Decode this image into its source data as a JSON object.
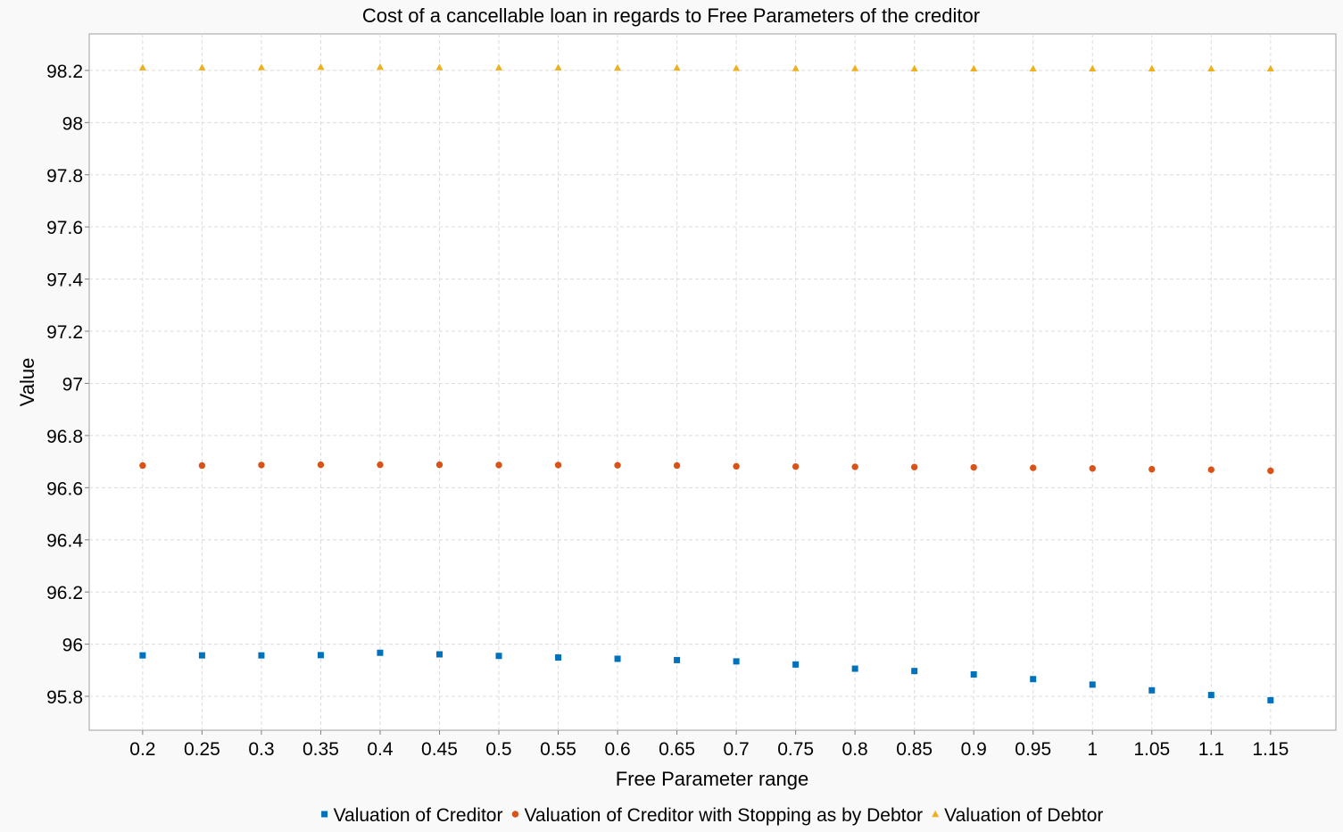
{
  "chart_data": {
    "type": "scatter",
    "title": "Cost of a cancellable loan in regards to Free Parameters of the creditor",
    "xlabel": "Free Parameter range",
    "ylabel": "Value",
    "x": [
      0.2,
      0.25,
      0.3,
      0.35,
      0.4,
      0.45,
      0.5,
      0.55,
      0.6,
      0.65,
      0.7,
      0.75,
      0.8,
      0.85,
      0.9,
      0.95,
      1,
      1.05,
      1.1,
      1.15
    ],
    "x_tick_labels": [
      "0.2",
      "0.25",
      "0.3",
      "0.35",
      "0.4",
      "0.45",
      "0.5",
      "0.55",
      "0.6",
      "0.65",
      "0.7",
      "0.75",
      "0.8",
      "0.85",
      "0.9",
      "0.95",
      "1",
      "1.05",
      "1.1",
      "1.15"
    ],
    "xlim": [
      0.155,
      1.205
    ],
    "ylim": [
      95.67,
      98.34
    ],
    "y_ticks": [
      95.8,
      96,
      96.2,
      96.4,
      96.6,
      96.8,
      97,
      97.2,
      97.4,
      97.6,
      97.8,
      98,
      98.2
    ],
    "y_tick_labels": [
      "95.8",
      "96",
      "96.2",
      "96.4",
      "96.6",
      "96.8",
      "97",
      "97.2",
      "97.4",
      "97.6",
      "97.8",
      "98",
      "98.2"
    ],
    "grid": true,
    "legend_position": "bottom",
    "series": [
      {
        "name": "Valuation of Creditor",
        "marker": "square",
        "color": "#0072BD",
        "values": [
          95.957,
          95.957,
          95.957,
          95.958,
          95.967,
          95.961,
          95.955,
          95.949,
          95.944,
          95.939,
          95.934,
          95.922,
          95.906,
          95.897,
          95.884,
          95.866,
          95.845,
          95.823,
          95.805,
          95.785
        ]
      },
      {
        "name": "Valuation of Creditor with Stopping as by Debtor",
        "marker": "circle",
        "color": "#D95319",
        "values": [
          96.685,
          96.685,
          96.687,
          96.688,
          96.688,
          96.688,
          96.687,
          96.687,
          96.686,
          96.685,
          96.682,
          96.681,
          96.68,
          96.679,
          96.678,
          96.676,
          96.674,
          96.671,
          96.669,
          96.665
        ]
      },
      {
        "name": "Valuation of Debtor",
        "marker": "triangle",
        "color": "#EDB120",
        "values": [
          98.211,
          98.211,
          98.212,
          98.213,
          98.213,
          98.212,
          98.211,
          98.211,
          98.21,
          98.21,
          98.209,
          98.208,
          98.208,
          98.207,
          98.207,
          98.207,
          98.207,
          98.207,
          98.207,
          98.207
        ]
      }
    ]
  }
}
